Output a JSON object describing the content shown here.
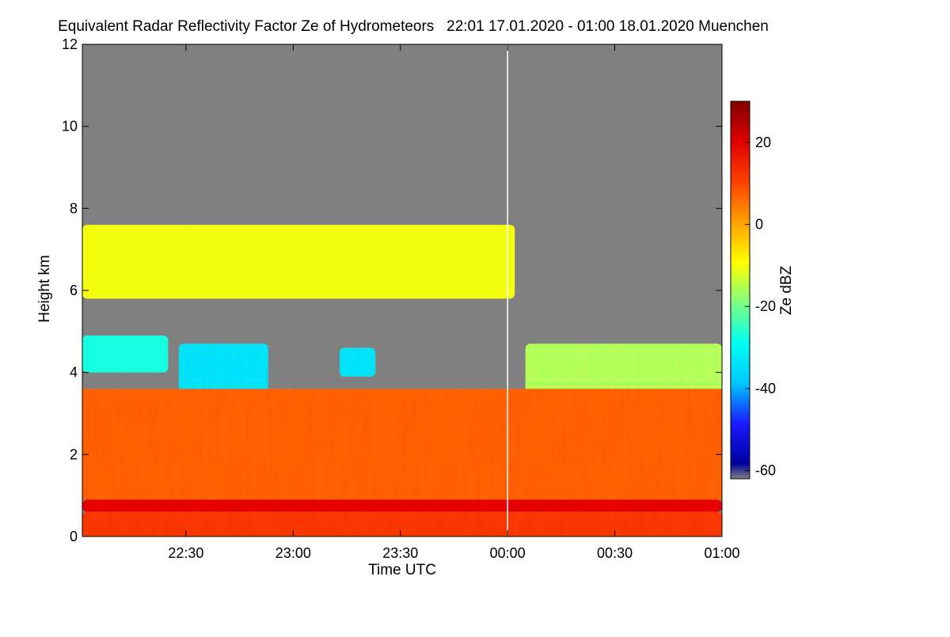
{
  "chart_data": {
    "type": "heatmap",
    "title": "Equivalent Radar Reflectivity Factor Ze of Hydrometeors   22:01 17.01.2020 - 01:00 18.01.2020 Muenchen",
    "xlabel": "Time UTC",
    "ylabel": "Height km",
    "colorbar_label": "Ze dBZ",
    "x_range_minutes": [
      -119,
      60
    ],
    "x_ticks": [
      {
        "minute": -90,
        "label": "22:30"
      },
      {
        "minute": -60,
        "label": "23:00"
      },
      {
        "minute": -30,
        "label": "23:30"
      },
      {
        "minute": 0,
        "label": "00:00"
      },
      {
        "minute": 30,
        "label": "00:30"
      },
      {
        "minute": 60,
        "label": "01:00"
      }
    ],
    "ylim": [
      0,
      12
    ],
    "y_ticks": [
      0,
      2,
      4,
      6,
      8,
      10,
      12
    ],
    "colorbar_range": [
      -62,
      30
    ],
    "colorbar_ticks": [
      20,
      0,
      -20,
      -40,
      -60
    ],
    "background_color": "#808080",
    "colormap": [
      "#0000a0",
      "#1a1aff",
      "#00c8ff",
      "#00ffee",
      "#80ff80",
      "#ffff00",
      "#ffa000",
      "#ff4000",
      "#e00000",
      "#800000"
    ],
    "marker_line_minute": 0,
    "regions": [
      {
        "name": "upper cloud layer",
        "x_start": -119,
        "x_end": 2,
        "base_km": 5.8,
        "top_km": 7.6,
        "ze_dbz": -12
      },
      {
        "name": "mid cloud layer left",
        "x_start": -119,
        "x_end": -95,
        "base_km": 4.0,
        "top_km": 4.9,
        "ze_dbz": -30
      },
      {
        "name": "mid cloud patch",
        "x_start": -92,
        "x_end": -67,
        "base_km": 3.5,
        "top_km": 4.7,
        "ze_dbz": -38
      },
      {
        "name": "mid cloud patch right",
        "x_start": -47,
        "x_end": -37,
        "base_km": 3.9,
        "top_km": 4.6,
        "ze_dbz": -38
      },
      {
        "name": "lower cloud top layer",
        "x_start": 5,
        "x_end": 60,
        "base_km": 3.5,
        "top_km": 4.7,
        "ze_dbz": -18
      },
      {
        "name": "precipitation layer",
        "x_start": -119,
        "x_end": 60,
        "base_km": 0.9,
        "top_km": 3.6,
        "ze_dbz": 7
      },
      {
        "name": "melting layer band",
        "x_start": -119,
        "x_end": 60,
        "base_km": 0.6,
        "top_km": 0.9,
        "ze_dbz": 20
      },
      {
        "name": "below melting layer",
        "x_start": -119,
        "x_end": 60,
        "base_km": 0.0,
        "top_km": 0.6,
        "ze_dbz": 12
      }
    ]
  }
}
